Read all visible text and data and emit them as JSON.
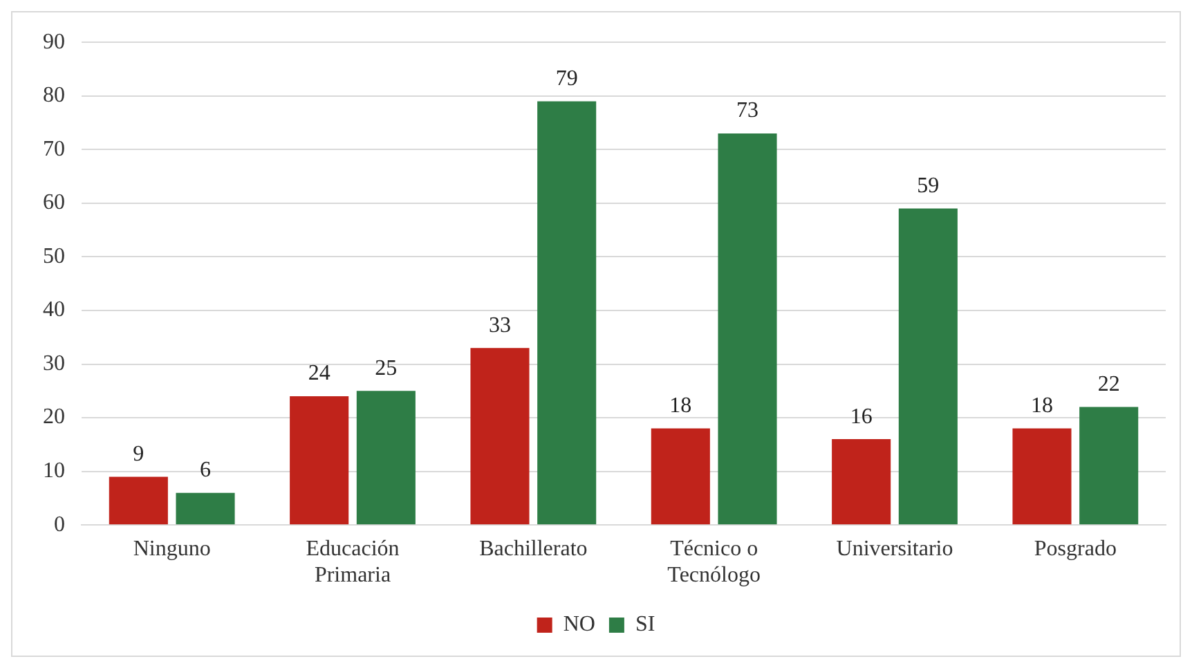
{
  "chart_data": {
    "type": "bar",
    "categories": [
      "Ninguno",
      "Educación Primaria",
      "Bachillerato",
      "Técnico o Tecnólogo",
      "Universitario",
      "Posgrado"
    ],
    "series": [
      {
        "name": "NO",
        "color": "#c0231b",
        "values": [
          9,
          24,
          33,
          18,
          16,
          18
        ]
      },
      {
        "name": "SI",
        "color": "#2e7d46",
        "values": [
          6,
          25,
          79,
          73,
          59,
          22
        ]
      }
    ],
    "ylim": [
      0,
      90
    ],
    "yticks": [
      0,
      10,
      20,
      30,
      40,
      50,
      60,
      70,
      80,
      90
    ],
    "grid": "y",
    "legend": "bottom",
    "data_labels": true
  }
}
